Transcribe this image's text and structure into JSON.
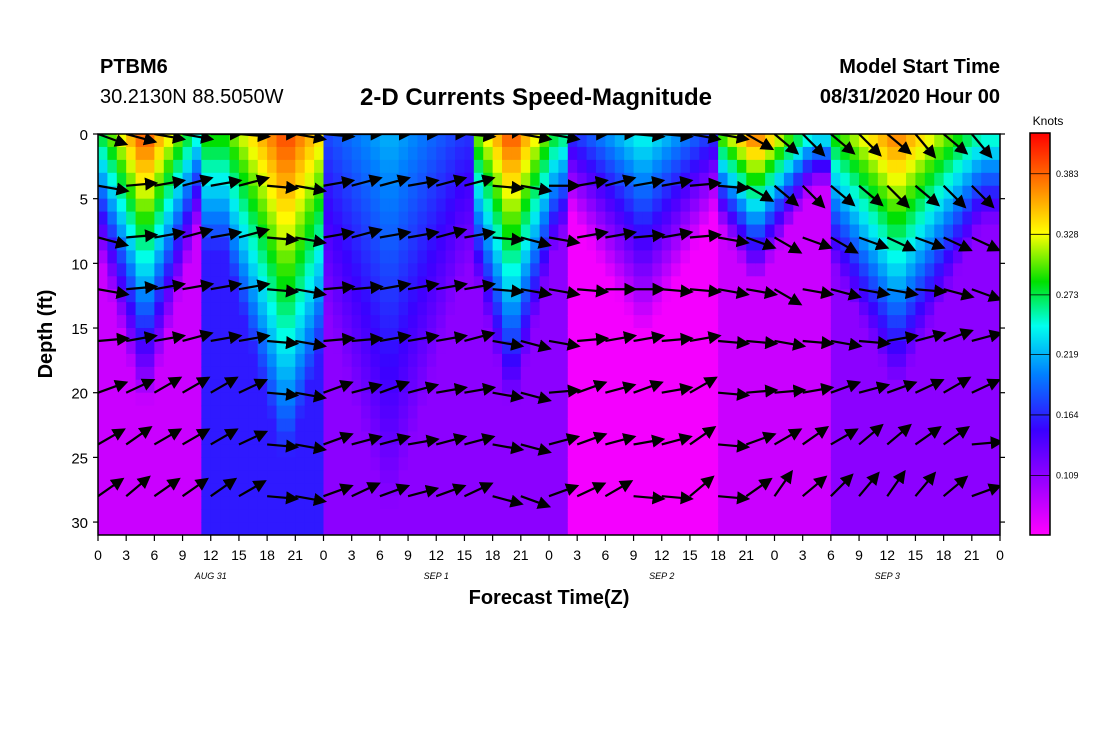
{
  "header": {
    "station": "PTBM6",
    "coords": "30.2130N 88.5050W",
    "title": "2-D Currents Speed-Magnitude",
    "model_start_label": "Model Start Time",
    "model_start_value": "08/31/2020 Hour 00"
  },
  "chart_data": {
    "type": "heatmap",
    "title": "2-D Currents Speed-Magnitude",
    "xlabel": "Forecast Time(Z)",
    "ylabel": "Depth (ft)",
    "x_range": [
      0,
      96
    ],
    "y_range": [
      0,
      31
    ],
    "x_ticks": [
      0,
      3,
      6,
      9,
      12,
      15,
      18,
      21,
      24,
      27,
      30,
      33,
      36,
      39,
      42,
      45,
      48,
      51,
      54,
      57,
      60,
      63,
      66,
      69,
      72,
      75,
      78,
      81,
      84,
      87,
      90,
      93,
      96
    ],
    "x_tick_labels": [
      "0",
      "3",
      "6",
      "9",
      "12",
      "15",
      "18",
      "21",
      "0",
      "3",
      "6",
      "9",
      "12",
      "15",
      "18",
      "21",
      "0",
      "3",
      "6",
      "9",
      "12",
      "15",
      "18",
      "21",
      "0",
      "3",
      "6",
      "9",
      "12",
      "15",
      "18",
      "21",
      "0"
    ],
    "day_labels": [
      {
        "x": 12,
        "label": "AUG 31"
      },
      {
        "x": 36,
        "label": "SEP 1"
      },
      {
        "x": 60,
        "label": "SEP 2"
      },
      {
        "x": 84,
        "label": "SEP 3"
      }
    ],
    "y_ticks": [
      0,
      5,
      10,
      15,
      20,
      25,
      30
    ],
    "y_tick_labels": [
      "0",
      "5",
      "10",
      "15",
      "20",
      "25",
      "30"
    ],
    "colorbar": {
      "label": "Knots",
      "range": [
        0.055,
        0.42
      ],
      "ticks": [
        0.383,
        0.328,
        0.273,
        0.219,
        0.164,
        0.109
      ],
      "tick_labels": [
        "0.383",
        "0.328",
        "0.273",
        "0.219",
        "0.164",
        "0.109"
      ]
    },
    "speed_bands": [
      {
        "t0": 0,
        "t1": 11,
        "peak_t": 5,
        "top_speed": 0.4,
        "bottom_speed": 0.08,
        "decay_depth": 22
      },
      {
        "t0": 11,
        "t1": 24,
        "peak_t": 20,
        "top_speed": 0.4,
        "bottom_speed": 0.16,
        "decay_depth": 26
      },
      {
        "t0": 24,
        "t1": 40,
        "peak_t": 31,
        "top_speed": 0.22,
        "bottom_speed": 0.11,
        "decay_depth": 30
      },
      {
        "t0": 40,
        "t1": 50,
        "peak_t": 44,
        "top_speed": 0.4,
        "bottom_speed": 0.11,
        "decay_depth": 22
      },
      {
        "t0": 50,
        "t1": 66,
        "peak_t": 58,
        "top_speed": 0.25,
        "bottom_speed": 0.06,
        "decay_depth": 16
      },
      {
        "t0": 66,
        "t1": 78,
        "peak_t": 70,
        "top_speed": 0.39,
        "bottom_speed": 0.08,
        "decay_depth": 12
      },
      {
        "t0": 78,
        "t1": 96,
        "peak_t": 85,
        "top_speed": 0.38,
        "bottom_speed": 0.11,
        "decay_depth": 20
      }
    ],
    "arrow_depths": [
      0,
      4,
      8,
      12,
      16,
      20,
      24,
      28
    ],
    "arrow_time_step": 3,
    "arrow_directions_deg": [
      [
        -20,
        -15,
        -10,
        -10,
        0,
        -5,
        0,
        -10,
        -5,
        0,
        0,
        0,
        0,
        -5,
        5,
        -10,
        -10,
        0,
        0,
        -5,
        -5,
        -10,
        -10,
        -30,
        -40,
        -45,
        -40,
        -45,
        -40,
        -50,
        -40,
        -50,
        -45
      ],
      [
        -10,
        5,
        10,
        15,
        10,
        15,
        -5,
        -10,
        10,
        15,
        15,
        10,
        15,
        15,
        -5,
        -10,
        0,
        10,
        15,
        10,
        10,
        5,
        -5,
        -30,
        -40,
        -45,
        -40,
        -40,
        -45,
        -40,
        -45,
        -45,
        -40
      ],
      [
        -15,
        5,
        10,
        15,
        10,
        15,
        -5,
        -10,
        10,
        15,
        10,
        10,
        15,
        10,
        -5,
        -15,
        -10,
        10,
        10,
        5,
        10,
        5,
        -10,
        -20,
        -30,
        -20,
        -30,
        -20,
        -25,
        -20,
        -25,
        -25,
        -30
      ],
      [
        -10,
        5,
        10,
        10,
        10,
        10,
        -5,
        -10,
        5,
        5,
        10,
        10,
        10,
        10,
        -5,
        -10,
        -10,
        -5,
        0,
        0,
        -5,
        -5,
        -10,
        -10,
        -30,
        -10,
        -15,
        -10,
        -10,
        -5,
        -15,
        -20,
        -20
      ],
      [
        5,
        10,
        10,
        15,
        10,
        10,
        -5,
        -10,
        5,
        5,
        10,
        10,
        10,
        15,
        -10,
        -15,
        -10,
        5,
        10,
        10,
        5,
        10,
        -5,
        -5,
        -10,
        -5,
        -10,
        -5,
        10,
        15,
        20,
        15,
        -10
      ],
      [
        20,
        25,
        30,
        30,
        30,
        25,
        -5,
        -10,
        20,
        15,
        20,
        15,
        10,
        10,
        -10,
        -15,
        5,
        20,
        15,
        20,
        10,
        30,
        -5,
        5,
        5,
        10,
        20,
        15,
        20,
        25,
        30,
        25,
        -10
      ],
      [
        30,
        35,
        30,
        30,
        30,
        25,
        -5,
        -10,
        20,
        15,
        15,
        10,
        15,
        15,
        -10,
        -15,
        15,
        20,
        15,
        10,
        15,
        35,
        -5,
        20,
        30,
        35,
        30,
        40,
        40,
        35,
        35,
        5,
        -5
      ],
      [
        35,
        40,
        35,
        35,
        35,
        30,
        -5,
        -10,
        20,
        25,
        20,
        15,
        20,
        25,
        -15,
        -20,
        20,
        25,
        30,
        -5,
        -5,
        40,
        -5,
        35,
        55,
        40,
        45,
        50,
        55,
        50,
        40,
        20,
        -5
      ]
    ]
  }
}
